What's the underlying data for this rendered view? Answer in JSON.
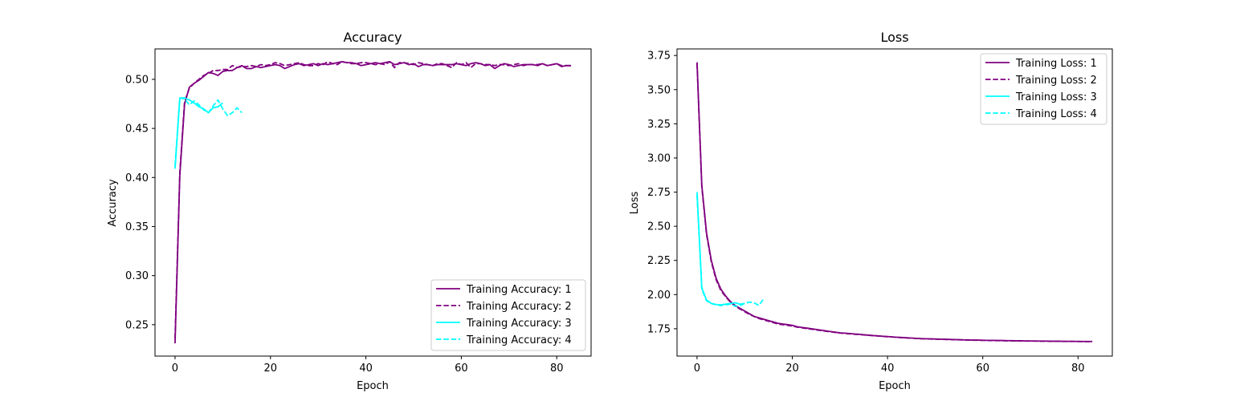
{
  "colors": {
    "purple": "#800080",
    "cyan": "#00ffff"
  },
  "chart_data": [
    {
      "type": "line",
      "title": "Accuracy",
      "xlabel": "Epoch",
      "ylabel": "Accuracy",
      "xlim": [
        -4.2,
        87.2
      ],
      "ylim": [
        0.218,
        0.531
      ],
      "xticks": [
        0,
        20,
        40,
        60,
        80
      ],
      "xtick_labels": [
        "0",
        "20",
        "40",
        "60",
        "80"
      ],
      "yticks": [
        0.25,
        0.3,
        0.35,
        0.4,
        0.45,
        0.5
      ],
      "ytick_labels": [
        "0.25",
        "0.30",
        "0.35",
        "0.40",
        "0.45",
        "0.50"
      ],
      "legend_position": "lower-right",
      "series": [
        {
          "name": "Training Accuracy: 1",
          "color": "#800080",
          "style": "solid",
          "x": [
            0,
            1,
            2,
            3,
            4,
            5,
            6,
            7,
            8,
            9,
            10,
            11,
            12,
            13,
            14,
            15,
            16,
            17,
            18,
            19,
            20,
            21,
            22,
            23,
            24,
            25,
            26,
            27,
            28,
            29,
            30,
            31,
            32,
            33,
            34,
            35,
            36,
            37,
            38,
            39,
            40,
            41,
            42,
            43,
            44,
            45,
            46,
            47,
            48,
            49,
            50,
            51,
            52,
            53,
            54,
            55,
            56,
            57,
            58,
            59,
            60,
            61,
            62,
            63,
            64,
            65,
            66,
            67,
            68,
            69,
            70,
            71,
            72,
            73,
            74,
            75,
            76,
            77,
            78,
            79,
            80,
            81,
            82,
            83
          ],
          "y": [
            0.231,
            0.402,
            0.475,
            0.492,
            0.496,
            0.499,
            0.503,
            0.507,
            0.506,
            0.504,
            0.508,
            0.509,
            0.509,
            0.512,
            0.514,
            0.511,
            0.511,
            0.513,
            0.512,
            0.513,
            0.514,
            0.515,
            0.514,
            0.511,
            0.513,
            0.515,
            0.516,
            0.514,
            0.515,
            0.516,
            0.514,
            0.516,
            0.515,
            0.516,
            0.517,
            0.518,
            0.517,
            0.517,
            0.516,
            0.514,
            0.515,
            0.516,
            0.517,
            0.516,
            0.517,
            0.518,
            0.515,
            0.516,
            0.517,
            0.515,
            0.516,
            0.513,
            0.515,
            0.515,
            0.514,
            0.515,
            0.515,
            0.515,
            0.515,
            0.516,
            0.515,
            0.514,
            0.516,
            0.517,
            0.516,
            0.514,
            0.515,
            0.511,
            0.514,
            0.516,
            0.515,
            0.513,
            0.514,
            0.515,
            0.515,
            0.515,
            0.514,
            0.516,
            0.514,
            0.515,
            0.516,
            0.513,
            0.514,
            0.514
          ]
        },
        {
          "name": "Training Accuracy: 2",
          "color": "#800080",
          "style": "dashed",
          "x": [
            0,
            1,
            2,
            3,
            4,
            5,
            6,
            7,
            8,
            9,
            10,
            11,
            12,
            13,
            14,
            15,
            16,
            17,
            18,
            19,
            20,
            21,
            22,
            23,
            24,
            25,
            26,
            27,
            28,
            29,
            30,
            31,
            32,
            33,
            34,
            35,
            36,
            37,
            38,
            39,
            40,
            41,
            42,
            43,
            44,
            45,
            46,
            47,
            48,
            49,
            50,
            51,
            52,
            53,
            54,
            55,
            56,
            57,
            58,
            59,
            60,
            61,
            62,
            63,
            64,
            65,
            66,
            67,
            68,
            69,
            70,
            71,
            72,
            73,
            74,
            75,
            76,
            77,
            78,
            79,
            80,
            81,
            82,
            83
          ],
          "y": [
            0.236,
            0.405,
            0.477,
            0.491,
            0.496,
            0.5,
            0.504,
            0.506,
            0.509,
            0.509,
            0.51,
            0.51,
            0.514,
            0.512,
            0.513,
            0.513,
            0.514,
            0.513,
            0.515,
            0.514,
            0.515,
            0.517,
            0.516,
            0.514,
            0.515,
            0.516,
            0.517,
            0.515,
            0.514,
            0.514,
            0.516,
            0.515,
            0.518,
            0.516,
            0.515,
            0.518,
            0.517,
            0.516,
            0.516,
            0.517,
            0.517,
            0.516,
            0.515,
            0.516,
            0.515,
            0.518,
            0.512,
            0.517,
            0.517,
            0.516,
            0.515,
            0.517,
            0.516,
            0.515,
            0.514,
            0.516,
            0.516,
            0.514,
            0.512,
            0.517,
            0.515,
            0.517,
            0.512,
            0.516,
            0.516,
            0.515,
            0.515,
            0.514,
            0.515,
            0.515,
            0.514,
            0.515,
            0.516,
            0.514,
            0.515,
            0.515,
            0.515,
            0.516,
            0.514,
            0.515,
            0.516,
            0.514,
            0.514,
            0.514
          ]
        },
        {
          "name": "Training Accuracy: 3",
          "color": "#00ffff",
          "style": "solid",
          "x": [
            0,
            1,
            2,
            3,
            4,
            5,
            6,
            7,
            8,
            9,
            10
          ],
          "y": [
            0.409,
            0.481,
            0.481,
            0.479,
            0.476,
            0.472,
            0.47,
            0.466,
            0.471,
            0.472,
            0.476
          ]
        },
        {
          "name": "Training Accuracy: 4",
          "color": "#00ffff",
          "style": "dashed",
          "x": [
            0,
            1,
            2,
            3,
            4,
            5,
            6,
            7,
            8,
            9,
            10,
            11,
            12,
            13,
            14
          ],
          "y": [
            0.412,
            0.481,
            0.48,
            0.474,
            0.478,
            0.474,
            0.469,
            0.466,
            0.473,
            0.479,
            0.47,
            0.463,
            0.466,
            0.471,
            0.466
          ]
        }
      ]
    },
    {
      "type": "line",
      "title": "Loss",
      "xlabel": "Epoch",
      "ylabel": "Loss",
      "xlim": [
        -4.2,
        87.2
      ],
      "ylim": [
        1.55,
        3.798
      ],
      "xticks": [
        0,
        20,
        40,
        60,
        80
      ],
      "xtick_labels": [
        "0",
        "20",
        "40",
        "60",
        "80"
      ],
      "yticks": [
        1.75,
        2.0,
        2.25,
        2.5,
        2.75,
        3.0,
        3.25,
        3.5,
        3.75
      ],
      "ytick_labels": [
        "1.75",
        "2.00",
        "2.25",
        "2.50",
        "2.75",
        "3.00",
        "3.25",
        "3.50",
        "3.75"
      ],
      "legend_position": "upper-right",
      "series": [
        {
          "name": "Training Loss: 1",
          "color": "#800080",
          "style": "solid",
          "x": [
            0,
            1,
            2,
            3,
            4,
            5,
            6,
            7,
            8,
            9,
            10,
            11,
            12,
            13,
            14,
            15,
            16,
            17,
            18,
            19,
            20,
            21,
            22,
            23,
            24,
            25,
            26,
            27,
            28,
            29,
            30,
            31,
            32,
            33,
            34,
            35,
            36,
            37,
            38,
            39,
            40,
            41,
            42,
            43,
            44,
            45,
            46,
            47,
            48,
            49,
            50,
            51,
            52,
            53,
            54,
            55,
            56,
            57,
            58,
            59,
            60,
            61,
            62,
            63,
            64,
            65,
            66,
            67,
            68,
            69,
            70,
            71,
            72,
            73,
            74,
            75,
            76,
            77,
            78,
            79,
            80,
            81,
            82,
            83
          ],
          "y": [
            3.7,
            2.8,
            2.45,
            2.25,
            2.12,
            2.04,
            1.99,
            1.95,
            1.92,
            1.9,
            1.88,
            1.86,
            1.84,
            1.83,
            1.82,
            1.81,
            1.8,
            1.79,
            1.785,
            1.78,
            1.775,
            1.765,
            1.76,
            1.755,
            1.75,
            1.745,
            1.74,
            1.735,
            1.73,
            1.725,
            1.72,
            1.718,
            1.715,
            1.712,
            1.71,
            1.706,
            1.703,
            1.7,
            1.698,
            1.695,
            1.693,
            1.69,
            1.688,
            1.686,
            1.684,
            1.682,
            1.68,
            1.678,
            1.677,
            1.676,
            1.675,
            1.674,
            1.673,
            1.672,
            1.671,
            1.67,
            1.669,
            1.668,
            1.667,
            1.667,
            1.666,
            1.665,
            1.665,
            1.664,
            1.664,
            1.663,
            1.663,
            1.662,
            1.662,
            1.661,
            1.661,
            1.66,
            1.66,
            1.66,
            1.659,
            1.659,
            1.659,
            1.658,
            1.658,
            1.658,
            1.657,
            1.657,
            1.657,
            1.657
          ]
        },
        {
          "name": "Training Loss: 2",
          "color": "#800080",
          "style": "dashed",
          "x": [
            0,
            1,
            2,
            3,
            4,
            5,
            6,
            7,
            8,
            9,
            10,
            11,
            12,
            13,
            14,
            15,
            16,
            17,
            18,
            19,
            20,
            21,
            22,
            23,
            24,
            25,
            26,
            27,
            28,
            29,
            30,
            31,
            32,
            33,
            34,
            35,
            36,
            37,
            38,
            39,
            40,
            41,
            42,
            43,
            44,
            45,
            46,
            47,
            48,
            49,
            50,
            51,
            52,
            53,
            54,
            55,
            56,
            57,
            58,
            59,
            60,
            61,
            62,
            63,
            64,
            65,
            66,
            67,
            68,
            69,
            70,
            71,
            72,
            73,
            74,
            75,
            76,
            77,
            78,
            79,
            80,
            81,
            82,
            83
          ],
          "y": [
            3.69,
            2.79,
            2.44,
            2.24,
            2.11,
            2.03,
            1.985,
            1.945,
            1.915,
            1.895,
            1.875,
            1.855,
            1.84,
            1.825,
            1.815,
            1.805,
            1.795,
            1.785,
            1.78,
            1.775,
            1.77,
            1.762,
            1.757,
            1.752,
            1.747,
            1.742,
            1.737,
            1.732,
            1.728,
            1.723,
            1.719,
            1.716,
            1.713,
            1.71,
            1.708,
            1.705,
            1.702,
            1.7,
            1.697,
            1.694,
            1.692,
            1.69,
            1.687,
            1.685,
            1.683,
            1.681,
            1.679,
            1.677,
            1.676,
            1.675,
            1.674,
            1.673,
            1.672,
            1.671,
            1.67,
            1.669,
            1.668,
            1.667,
            1.666,
            1.666,
            1.665,
            1.664,
            1.664,
            1.663,
            1.663,
            1.662,
            1.662,
            1.661,
            1.661,
            1.66,
            1.66,
            1.66,
            1.659,
            1.659,
            1.658,
            1.658,
            1.658,
            1.657,
            1.657,
            1.657,
            1.657,
            1.656,
            1.656,
            1.656
          ]
        },
        {
          "name": "Training Loss: 3",
          "color": "#00ffff",
          "style": "solid",
          "x": [
            0,
            1,
            2,
            3,
            4,
            5,
            6,
            7,
            8,
            9,
            10
          ],
          "y": [
            2.75,
            2.05,
            1.96,
            1.935,
            1.928,
            1.925,
            1.93,
            1.935,
            1.94,
            1.93,
            1.935
          ]
        },
        {
          "name": "Training Loss: 4",
          "color": "#00ffff",
          "style": "dashed",
          "x": [
            0,
            1,
            2,
            3,
            4,
            5,
            6,
            7,
            8,
            9,
            10,
            11,
            12,
            13,
            14
          ],
          "y": [
            2.73,
            2.04,
            1.955,
            1.935,
            1.925,
            1.92,
            1.925,
            1.93,
            1.915,
            1.92,
            1.935,
            1.945,
            1.94,
            1.92,
            1.97
          ]
        }
      ]
    }
  ]
}
